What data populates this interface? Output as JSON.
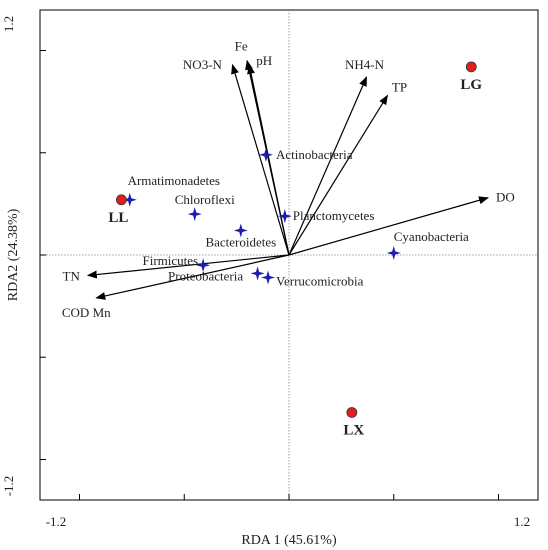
{
  "chart_data": {
    "type": "scatter",
    "subtype": "rda-biplot",
    "xlabel": "RDA 1 (45.61%)",
    "ylabel": "RDA2 (24.38%)",
    "xlim": [
      -1.2,
      1.2
    ],
    "ylim": [
      -1.2,
      1.2
    ],
    "x_tick_labels": [
      "-1.2",
      "1.2"
    ],
    "y_tick_labels": [
      "1.2",
      "-1.2"
    ],
    "reference_lines": "dotted lines at x=0 and y=0",
    "colors": {
      "arrow": "#000000",
      "species": "#1c1cb0",
      "site": "#e01e1e"
    },
    "arrows": [
      {
        "label": "NO3-N",
        "x": -0.27,
        "y": 0.93
      },
      {
        "label": "Fe",
        "x": -0.2,
        "y": 0.95
      },
      {
        "label": "pH",
        "x": -0.19,
        "y": 0.93
      },
      {
        "label": "NH4-N",
        "x": 0.37,
        "y": 0.87
      },
      {
        "label": "TP",
        "x": 0.47,
        "y": 0.78
      },
      {
        "label": "DO",
        "x": 0.95,
        "y": 0.28
      },
      {
        "label": "TN",
        "x": -0.96,
        "y": -0.1
      },
      {
        "label": "COD Mn",
        "x": -0.92,
        "y": -0.21
      }
    ],
    "species": [
      {
        "label": "Actinobacteria",
        "x": -0.11,
        "y": 0.49
      },
      {
        "label": "Armatimonadetes",
        "x": -0.76,
        "y": 0.27
      },
      {
        "label": "Chloroflexi",
        "x": -0.45,
        "y": 0.2
      },
      {
        "label": "Planctomycetes",
        "x": -0.02,
        "y": 0.19
      },
      {
        "label": "Bacteroidetes",
        "x": -0.23,
        "y": 0.12
      },
      {
        "label": "Firmicutes",
        "x": -0.41,
        "y": -0.05
      },
      {
        "label": "Proteobacteria",
        "x": -0.15,
        "y": -0.09
      },
      {
        "label": "Verrucomicrobia",
        "x": -0.1,
        "y": -0.11
      },
      {
        "label": "Cyanobacteria",
        "x": 0.5,
        "y": 0.01
      }
    ],
    "sites": [
      {
        "label": "LG",
        "x": 0.87,
        "y": 0.92
      },
      {
        "label": "LL",
        "x": -0.8,
        "y": 0.27
      },
      {
        "label": "LX",
        "x": 0.3,
        "y": -0.77
      }
    ]
  }
}
